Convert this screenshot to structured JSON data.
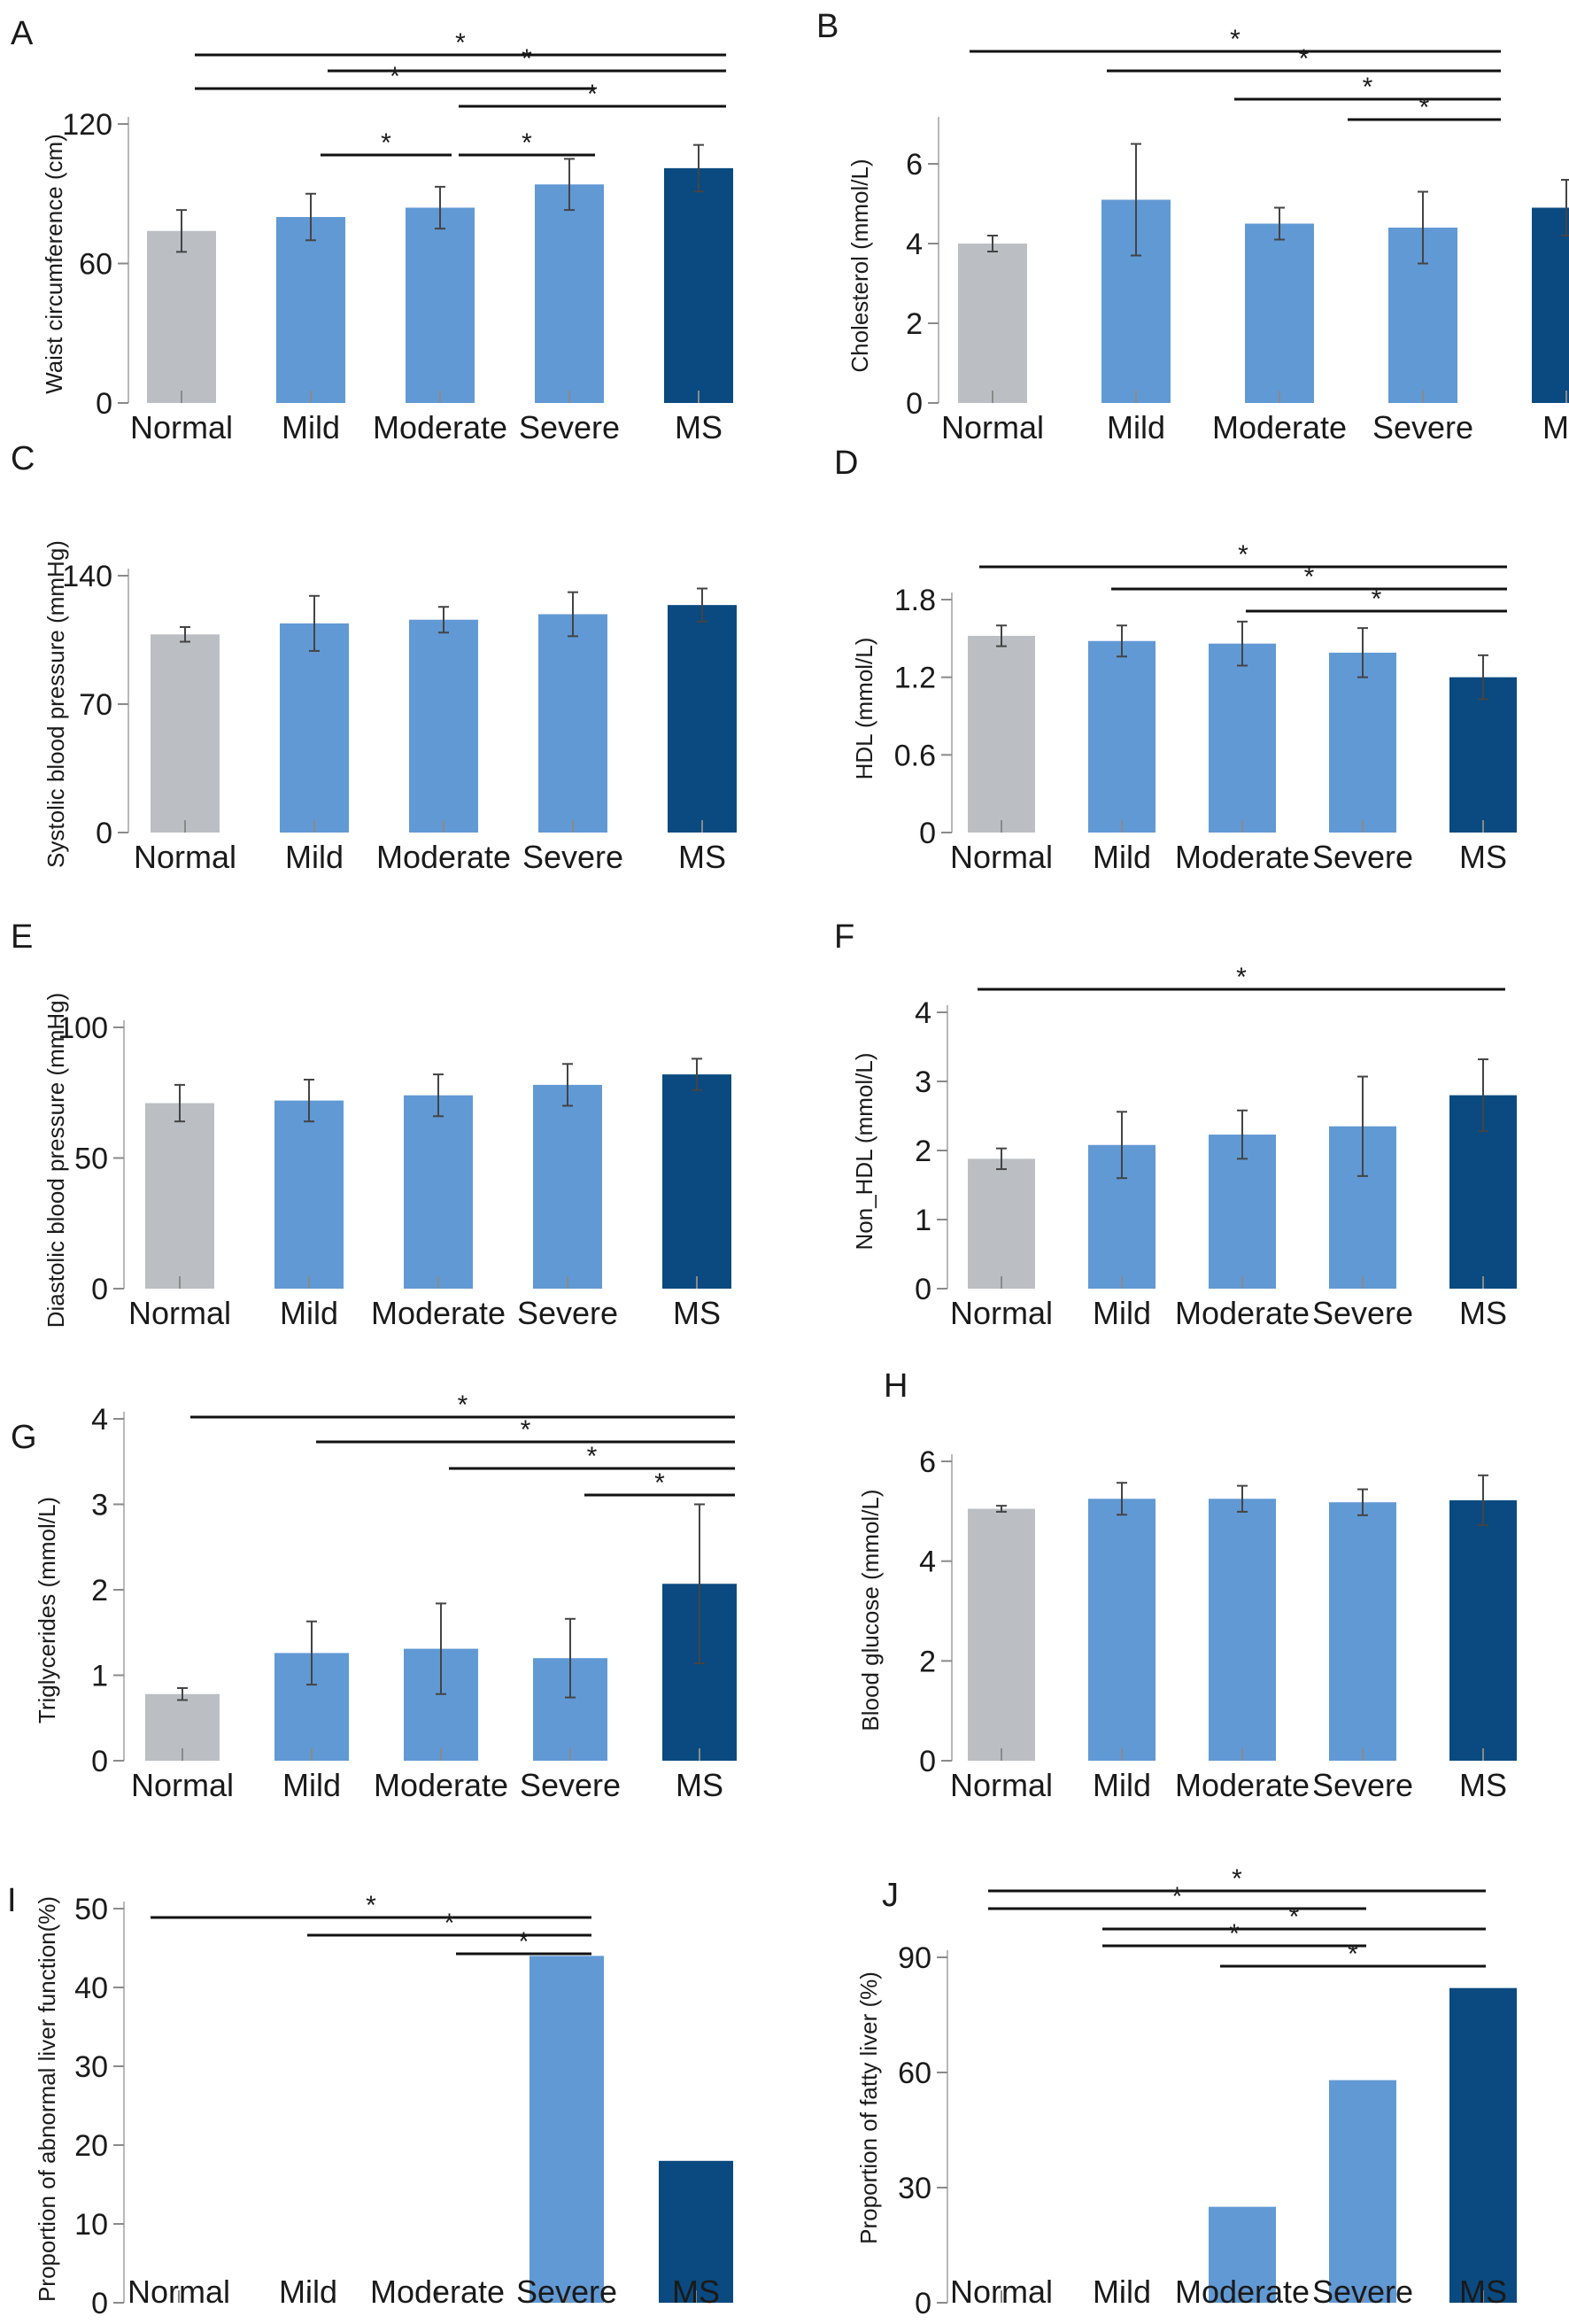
{
  "colors": {
    "normal": "#bbbfc3",
    "mild": "#6199d4",
    "moderate": "#6199d4",
    "severe": "#6199d4",
    "ms": "#0a4a80"
  },
  "chart_data": [
    {
      "panel": "A",
      "type": "bar",
      "title": "",
      "xlabel": "",
      "ylabel": "Waist circumference (cm)",
      "categories": [
        "Normal",
        "Mild",
        "Moderate",
        "Severe",
        "MS"
      ],
      "values": [
        74,
        80,
        84,
        94,
        101
      ],
      "errors": [
        9,
        10,
        9,
        11,
        10
      ],
      "ylim": [
        0,
        120
      ],
      "yticks": [
        0,
        60,
        120
      ],
      "significance": [
        {
          "from": 0,
          "to": 4,
          "label": "*"
        },
        {
          "from": 1,
          "to": 4,
          "label": "*"
        },
        {
          "from": 0,
          "to": 3,
          "label": "*"
        },
        {
          "from": 2,
          "to": 4,
          "label": "*"
        },
        {
          "from": 1,
          "to": 2,
          "label": "*"
        },
        {
          "from": 2,
          "to": 3,
          "label": "*"
        }
      ]
    },
    {
      "panel": "B",
      "type": "bar",
      "title": "",
      "xlabel": "",
      "ylabel": "Cholesterol (mmol/L)",
      "categories": [
        "Normal",
        "Mild",
        "Moderate",
        "Severe",
        "MS"
      ],
      "values": [
        4.0,
        5.1,
        4.5,
        4.4,
        4.9
      ],
      "errors": [
        0.2,
        1.4,
        0.4,
        0.9,
        0.7
      ],
      "ylim": [
        0,
        7
      ],
      "yticks": [
        0,
        2,
        4,
        6
      ],
      "significance": [
        {
          "from": 0,
          "to": 4,
          "label": "*"
        },
        {
          "from": 1,
          "to": 4,
          "label": "*"
        },
        {
          "from": 2,
          "to": 4,
          "label": "*"
        },
        {
          "from": 3,
          "to": 4,
          "label": "*"
        }
      ]
    },
    {
      "panel": "C",
      "type": "bar",
      "title": "",
      "xlabel": "",
      "ylabel": "Systolic blood pressure (mmHg)",
      "categories": [
        "Normal",
        "Mild",
        "Moderate",
        "Severe",
        "MS"
      ],
      "values": [
        108,
        114,
        116,
        119,
        124
      ],
      "errors": [
        4,
        15,
        7,
        12,
        9
      ],
      "ylim": [
        0,
        140
      ],
      "yticks": [
        0,
        70,
        140
      ],
      "significance": []
    },
    {
      "panel": "D",
      "type": "bar",
      "title": "",
      "xlabel": "",
      "ylabel": "HDL (mmol/L)",
      "categories": [
        "Normal",
        "Mild",
        "Moderate",
        "Severe",
        "MS"
      ],
      "values": [
        1.52,
        1.48,
        1.46,
        1.39,
        1.2
      ],
      "errors": [
        0.08,
        0.12,
        0.17,
        0.19,
        0.17
      ],
      "ylim": [
        0,
        1.8
      ],
      "yticks": [
        0,
        0.6,
        1.2,
        1.8
      ],
      "significance": [
        {
          "from": 0,
          "to": 4,
          "label": "*"
        },
        {
          "from": 1,
          "to": 4,
          "label": "*"
        },
        {
          "from": 2,
          "to": 4,
          "label": "*"
        }
      ]
    },
    {
      "panel": "E",
      "type": "bar",
      "title": "",
      "xlabel": "",
      "ylabel": "Diastolic blood pressure (mmHg)",
      "categories": [
        "Normal",
        "Mild",
        "Moderate",
        "Severe",
        "MS"
      ],
      "values": [
        71,
        72,
        74,
        78,
        82
      ],
      "errors": [
        7,
        8,
        8,
        8,
        6
      ],
      "ylim": [
        0,
        100
      ],
      "yticks": [
        0,
        50,
        100
      ],
      "significance": []
    },
    {
      "panel": "F",
      "type": "bar",
      "title": "",
      "xlabel": "",
      "ylabel": "Non_HDL (mmol/L)",
      "categories": [
        "Normal",
        "Mild",
        "Moderate",
        "Severe",
        "MS"
      ],
      "values": [
        1.88,
        2.08,
        2.23,
        2.35,
        2.8
      ],
      "errors": [
        0.15,
        0.48,
        0.35,
        0.72,
        0.52
      ],
      "ylim": [
        0,
        4
      ],
      "yticks": [
        0,
        1,
        2,
        3,
        4
      ],
      "significance": [
        {
          "from": 0,
          "to": 4,
          "label": "*"
        }
      ]
    },
    {
      "panel": "G",
      "type": "bar",
      "title": "",
      "xlabel": "",
      "ylabel": "Triglycerides (mmol/L)",
      "categories": [
        "Normal",
        "Mild",
        "Moderate",
        "Severe",
        "MS"
      ],
      "values": [
        0.78,
        1.26,
        1.31,
        1.2,
        2.07
      ],
      "errors": [
        0.07,
        0.37,
        0.53,
        0.46,
        0.93
      ],
      "ylim": [
        0,
        4
      ],
      "yticks": [
        0,
        1,
        2,
        3,
        4
      ],
      "significance": [
        {
          "from": 0,
          "to": 4,
          "label": "*"
        },
        {
          "from": 1,
          "to": 4,
          "label": "*"
        },
        {
          "from": 2,
          "to": 4,
          "label": "*"
        },
        {
          "from": 3,
          "to": 4,
          "label": "*"
        }
      ]
    },
    {
      "panel": "H",
      "type": "bar",
      "title": "",
      "xlabel": "",
      "ylabel": "Blood glucose (mmol/L)",
      "categories": [
        "Normal",
        "Mild",
        "Moderate",
        "Severe",
        "MS"
      ],
      "values": [
        5.05,
        5.25,
        5.25,
        5.18,
        5.22
      ],
      "errors": [
        0.06,
        0.32,
        0.26,
        0.26,
        0.5
      ],
      "ylim": [
        0,
        6
      ],
      "yticks": [
        0,
        2,
        4,
        6
      ],
      "significance": []
    },
    {
      "panel": "I",
      "type": "bar",
      "title": "",
      "xlabel": "",
      "ylabel": "Proportion of abnormal liver function(%)",
      "categories": [
        "Normal",
        "Mild",
        "Moderate",
        "Severe",
        "MS"
      ],
      "values": [
        0,
        0,
        0,
        44,
        18
      ],
      "errors": [
        0,
        0,
        0,
        0,
        0
      ],
      "ylim": [
        0,
        50
      ],
      "yticks": [
        0,
        10,
        20,
        30,
        40,
        50
      ],
      "significance": [
        {
          "from": 0,
          "to": 3,
          "label": "*"
        },
        {
          "from": 1,
          "to": 3,
          "label": "*"
        },
        {
          "from": 2,
          "to": 3,
          "label": "*"
        }
      ]
    },
    {
      "panel": "J",
      "type": "bar",
      "title": "",
      "xlabel": "",
      "ylabel": "Proportion of  fatty liver (%)",
      "categories": [
        "Normal",
        "Mild",
        "Moderate",
        "Severe",
        "MS"
      ],
      "values": [
        0,
        0,
        25,
        58,
        82
      ],
      "errors": [
        0,
        0,
        0,
        0,
        0
      ],
      "ylim": [
        0,
        90
      ],
      "yticks": [
        0,
        30,
        60,
        90
      ],
      "significance": [
        {
          "from": 0,
          "to": 4,
          "label": "*"
        },
        {
          "from": 0,
          "to": 3,
          "label": "*"
        },
        {
          "from": 1,
          "to": 4,
          "label": "*"
        },
        {
          "from": 1,
          "to": 3,
          "label": "*"
        },
        {
          "from": 2,
          "to": 4,
          "label": "*"
        }
      ]
    }
  ]
}
